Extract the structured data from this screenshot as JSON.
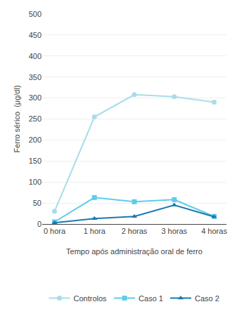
{
  "chart_data": {
    "type": "line",
    "xlabel": "Tempo após administração oral de ferro",
    "ylabel": "Ferro sérico  (μg/dl)",
    "categories": [
      "0 hora",
      "1 hora",
      "2 horas",
      "3 horas",
      "4 horas"
    ],
    "series": [
      {
        "name": "Controlos",
        "color": "#a8dde8",
        "marker": "circle",
        "values": [
          30,
          255,
          308,
          303,
          290
        ]
      },
      {
        "name": "Caso 1",
        "color": "#5dcde8",
        "marker": "square",
        "values": [
          5,
          63,
          53,
          58,
          18
        ]
      },
      {
        "name": "Caso 2",
        "color": "#1a7ab0",
        "marker": "triangle-up",
        "values": [
          3,
          13,
          18,
          45,
          17
        ]
      }
    ],
    "ylim": [
      0,
      500
    ],
    "yticks": [
      0,
      50,
      100,
      150,
      200,
      250,
      300,
      350,
      400,
      450,
      500
    ],
    "grid": true,
    "legend": "bottom"
  }
}
